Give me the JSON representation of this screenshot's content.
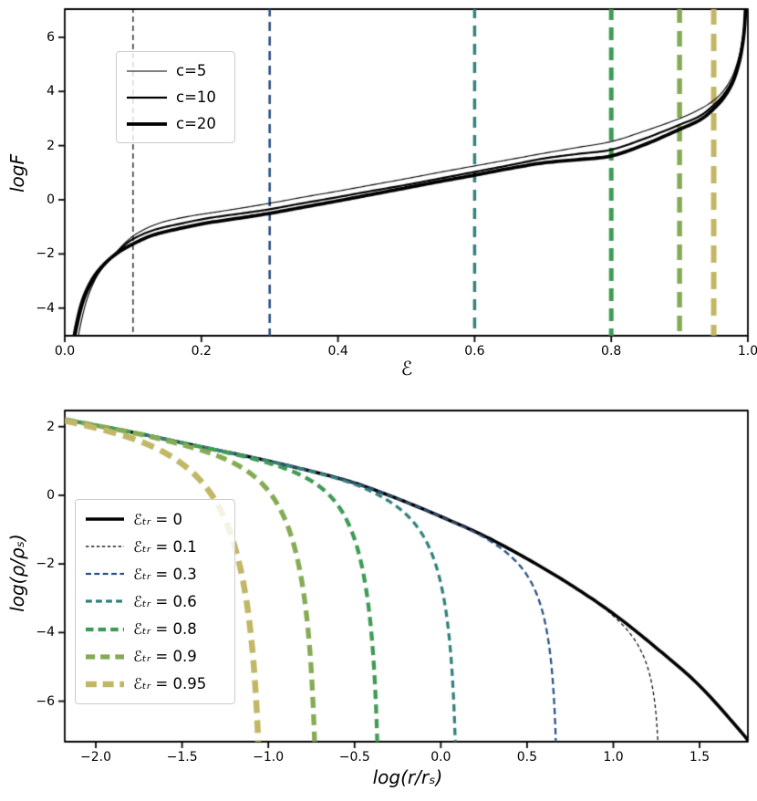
{
  "figure": {
    "background": "#ffffff"
  },
  "chart_data": [
    {
      "type": "line",
      "title": "",
      "xlabel": "ℰ",
      "ylabel": "logF",
      "xlim": [
        0,
        1
      ],
      "ylim": [
        -5.02,
        7.04
      ],
      "grid": false,
      "xticks": {
        "values": [
          0,
          0.2,
          0.4,
          0.6,
          0.8,
          1.0
        ],
        "labels": [
          "0.0",
          "0.2",
          "0.4",
          "0.6",
          "0.8",
          "1.0"
        ]
      },
      "yticks": {
        "values": [
          -4,
          -2,
          0,
          2,
          4,
          6
        ],
        "labels": [
          "−4",
          "−2",
          "0",
          "2",
          "4",
          "6"
        ]
      },
      "legend": {
        "position": "upper-left",
        "items": [
          {
            "label": "c=5",
            "color": "#000000",
            "lw": 1.1,
            "dash": null
          },
          {
            "label": "c=10",
            "color": "#000000",
            "lw": 2.2,
            "dash": null
          },
          {
            "label": "c=20",
            "color": "#000000",
            "lw": 3.8,
            "dash": null
          }
        ]
      },
      "series": [
        {
          "name": "c=5",
          "color": "#000000",
          "lw": 1.1,
          "points": [
            [
              0.012,
              -7
            ],
            [
              0.018,
              -5.4
            ],
            [
              0.025,
              -4.4
            ],
            [
              0.035,
              -3.5
            ],
            [
              0.05,
              -2.7
            ],
            [
              0.07,
              -2.1
            ],
            [
              0.09,
              -1.55
            ],
            [
              0.11,
              -1.18
            ],
            [
              0.14,
              -0.85
            ],
            [
              0.18,
              -0.62
            ],
            [
              0.22,
              -0.46
            ],
            [
              0.26,
              -0.3
            ],
            [
              0.3,
              -0.13
            ],
            [
              0.35,
              0.1
            ],
            [
              0.4,
              0.32
            ],
            [
              0.45,
              0.55
            ],
            [
              0.5,
              0.78
            ],
            [
              0.55,
              1.02
            ],
            [
              0.6,
              1.25
            ],
            [
              0.65,
              1.48
            ],
            [
              0.7,
              1.71
            ],
            [
              0.75,
              1.93
            ],
            [
              0.8,
              2.15
            ],
            [
              0.85,
              2.55
            ],
            [
              0.9,
              3.0
            ],
            [
              0.93,
              3.35
            ],
            [
              0.95,
              3.67
            ],
            [
              0.965,
              4.05
            ],
            [
              0.978,
              4.6
            ],
            [
              0.987,
              5.3
            ],
            [
              0.992,
              5.95
            ],
            [
              0.995,
              6.55
            ],
            [
              0.9962,
              7.15
            ]
          ]
        },
        {
          "name": "c=10",
          "color": "#000000",
          "lw": 2.2,
          "points": [
            [
              0.009,
              -7
            ],
            [
              0.014,
              -5.4
            ],
            [
              0.02,
              -4.5
            ],
            [
              0.03,
              -3.6
            ],
            [
              0.045,
              -2.85
            ],
            [
              0.062,
              -2.3
            ],
            [
              0.082,
              -1.8
            ],
            [
              0.1,
              -1.45
            ],
            [
              0.13,
              -1.12
            ],
            [
              0.17,
              -0.88
            ],
            [
              0.21,
              -0.68
            ],
            [
              0.26,
              -0.5
            ],
            [
              0.3,
              -0.35
            ],
            [
              0.35,
              -0.12
            ],
            [
              0.4,
              0.1
            ],
            [
              0.45,
              0.33
            ],
            [
              0.5,
              0.55
            ],
            [
              0.55,
              0.79
            ],
            [
              0.6,
              1.03
            ],
            [
              0.65,
              1.27
            ],
            [
              0.7,
              1.52
            ],
            [
              0.75,
              1.69
            ],
            [
              0.8,
              1.85
            ],
            [
              0.85,
              2.27
            ],
            [
              0.9,
              2.77
            ],
            [
              0.93,
              3.1
            ],
            [
              0.95,
              3.5
            ],
            [
              0.965,
              3.9
            ],
            [
              0.978,
              4.45
            ],
            [
              0.987,
              5.15
            ],
            [
              0.992,
              5.8
            ],
            [
              0.995,
              6.4
            ],
            [
              0.9965,
              7.15
            ]
          ]
        },
        {
          "name": "c=20",
          "color": "#000000",
          "lw": 3.8,
          "points": [
            [
              0.007,
              -7
            ],
            [
              0.012,
              -5.4
            ],
            [
              0.018,
              -4.5
            ],
            [
              0.027,
              -3.65
            ],
            [
              0.04,
              -2.95
            ],
            [
              0.055,
              -2.45
            ],
            [
              0.075,
              -2.0
            ],
            [
              0.1,
              -1.63
            ],
            [
              0.13,
              -1.3
            ],
            [
              0.17,
              -1.05
            ],
            [
              0.21,
              -0.85
            ],
            [
              0.26,
              -0.66
            ],
            [
              0.3,
              -0.5
            ],
            [
              0.35,
              -0.27
            ],
            [
              0.4,
              -0.04
            ],
            [
              0.45,
              0.2
            ],
            [
              0.5,
              0.44
            ],
            [
              0.55,
              0.68
            ],
            [
              0.6,
              0.91
            ],
            [
              0.65,
              1.15
            ],
            [
              0.7,
              1.36
            ],
            [
              0.75,
              1.48
            ],
            [
              0.8,
              1.62
            ],
            [
              0.85,
              2.05
            ],
            [
              0.9,
              2.6
            ],
            [
              0.93,
              2.95
            ],
            [
              0.95,
              3.36
            ],
            [
              0.965,
              3.78
            ],
            [
              0.978,
              4.35
            ],
            [
              0.987,
              5.05
            ],
            [
              0.992,
              5.7
            ],
            [
              0.995,
              6.35
            ],
            [
              0.9968,
              7.15
            ]
          ]
        }
      ],
      "vlines": [
        {
          "x": 0.1,
          "color": "#000000",
          "lw": 1.2,
          "dash": [
            6,
            4
          ]
        },
        {
          "x": 0.3,
          "color": "#2a5284",
          "lw": 2.6,
          "dash": [
            10,
            6
          ]
        },
        {
          "x": 0.6,
          "color": "#33817e",
          "lw": 3.5,
          "dash": [
            12,
            8
          ]
        },
        {
          "x": 0.8,
          "color": "#3f9b55",
          "lw": 5.0,
          "dash": [
            14,
            8
          ]
        },
        {
          "x": 0.9,
          "color": "#85ab55",
          "lw": 5.5,
          "dash": [
            17,
            9
          ]
        },
        {
          "x": 0.95,
          "color": "#c1b765",
          "lw": 6.0,
          "dash": [
            19,
            10
          ]
        }
      ]
    },
    {
      "type": "line",
      "title": "",
      "xlabel": "log(r/rₛ)",
      "ylabel": "log(ρ/ρₛ)",
      "xlim": [
        -2.18,
        1.78
      ],
      "ylim": [
        -7.18,
        2.47
      ],
      "grid": false,
      "xticks": {
        "values": [
          -2.0,
          -1.5,
          -1.0,
          -0.5,
          0.0,
          0.5,
          1.0,
          1.5
        ],
        "labels": [
          "−2.0",
          "−1.5",
          "−1.0",
          "−0.5",
          "0.0",
          "0.5",
          "1.0",
          "1.5"
        ]
      },
      "yticks": {
        "values": [
          2,
          0,
          -2,
          -4,
          -6
        ],
        "labels": [
          "2",
          "0",
          "−2",
          "−4",
          "−6"
        ]
      },
      "legend": {
        "position": "center-left",
        "items": [
          {
            "sym": "ℰₜᵣ",
            "val": "0",
            "color": "#000000",
            "lw": 3.6,
            "dash": null
          },
          {
            "sym": "ℰₜᵣ",
            "val": "0.1",
            "color": "#000000",
            "lw": 1.2,
            "dash": [
              4,
              3
            ]
          },
          {
            "sym": "ℰₜᵣ",
            "val": "0.3",
            "color": "#2a5284",
            "lw": 2.3,
            "dash": [
              7,
              4
            ]
          },
          {
            "sym": "ℰₜᵣ",
            "val": "0.6",
            "color": "#33817e",
            "lw": 3.3,
            "dash": [
              8,
              5
            ]
          },
          {
            "sym": "ℰₜᵣ",
            "val": "0.8",
            "color": "#3f9b55",
            "lw": 4.3,
            "dash": [
              10,
              6
            ]
          },
          {
            "sym": "ℰₜᵣ",
            "val": "0.9",
            "color": "#85ab55",
            "lw": 5.3,
            "dash": [
              12,
              7
            ]
          },
          {
            "sym": "ℰₜᵣ",
            "val": "0.95",
            "color": "#c1b765",
            "lw": 6.5,
            "dash": [
              14,
              8
            ]
          }
        ]
      },
      "base_series": {
        "name": "Etr=0",
        "color": "#000000",
        "lw": 3.6,
        "points": [
          [
            -2.18,
            2.21
          ],
          [
            -2.0,
            2.04
          ],
          [
            -1.75,
            1.8
          ],
          [
            -1.5,
            1.53
          ],
          [
            -1.25,
            1.27
          ],
          [
            -1.0,
            1.0
          ],
          [
            -0.75,
            0.7
          ],
          [
            -0.5,
            0.36
          ],
          [
            -0.25,
            -0.1
          ],
          [
            0.0,
            -0.62
          ],
          [
            0.25,
            -1.18
          ],
          [
            0.5,
            -1.85
          ],
          [
            0.75,
            -2.6
          ],
          [
            1.0,
            -3.45
          ],
          [
            1.25,
            -4.45
          ],
          [
            1.5,
            -5.55
          ],
          [
            1.75,
            -6.95
          ],
          [
            1.78,
            -7.18
          ]
        ]
      },
      "truncated_series": [
        {
          "name": "Etr=0.1",
          "trunc_x": 1.27,
          "softness": 0.09,
          "color": "#000000",
          "lw": 1.2,
          "dash": [
            4,
            3
          ]
        },
        {
          "name": "Etr=0.3",
          "trunc_x": 0.68,
          "softness": 0.11,
          "color": "#2a5284",
          "lw": 2.3,
          "dash": [
            7,
            4
          ]
        },
        {
          "name": "Etr=0.6",
          "trunc_x": 0.1,
          "softness": 0.14,
          "color": "#33817e",
          "lw": 3.3,
          "dash": [
            8,
            5
          ]
        },
        {
          "name": "Etr=0.8",
          "trunc_x": -0.35,
          "softness": 0.16,
          "color": "#3f9b55",
          "lw": 4.3,
          "dash": [
            10,
            6
          ]
        },
        {
          "name": "Etr=0.9",
          "trunc_x": -0.71,
          "softness": 0.19,
          "color": "#85ab55",
          "lw": 5.3,
          "dash": [
            12,
            7
          ]
        },
        {
          "name": "Etr=0.95",
          "trunc_x": -1.03,
          "softness": 0.25,
          "color": "#c1b765",
          "lw": 6.5,
          "dash": [
            14,
            8
          ]
        }
      ]
    }
  ]
}
